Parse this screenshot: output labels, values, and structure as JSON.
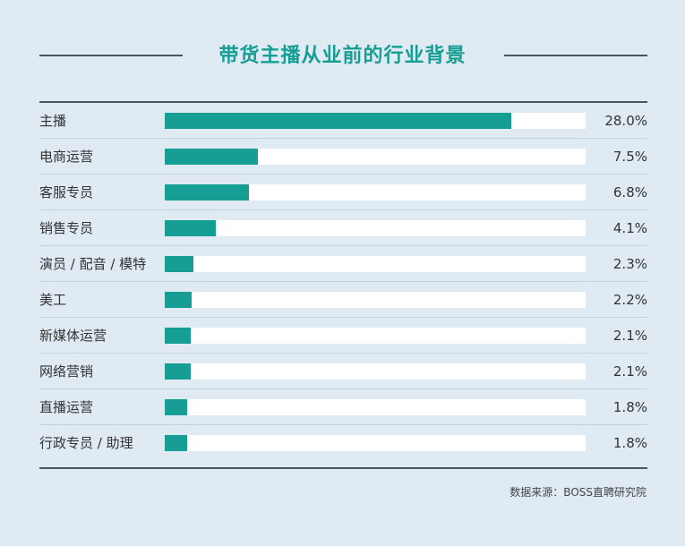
{
  "chart_data": {
    "type": "bar",
    "orientation": "horizontal",
    "title": "带货主播从业前的行业背景",
    "categories": [
      "主播",
      "电商运营",
      "客服专员",
      "销售专员",
      "演员 / 配音 / 模特",
      "美工",
      "新媒体运营",
      "网络营销",
      "直播运营",
      "行政专员 / 助理"
    ],
    "values": [
      28.0,
      7.5,
      6.8,
      4.1,
      2.3,
      2.2,
      2.1,
      2.1,
      1.8,
      1.8
    ],
    "value_labels": [
      "28.0%",
      "7.5%",
      "6.8%",
      "4.1%",
      "2.3%",
      "2.2%",
      "2.1%",
      "2.1%",
      "1.8%",
      "1.8%"
    ],
    "unit": "%",
    "xlim": [
      0,
      34
    ],
    "bar_color": "#169e94",
    "track_color": "#ffffff",
    "source": "数据来源：BOSS直聘研究院",
    "watermark": "BOSS直聘"
  }
}
